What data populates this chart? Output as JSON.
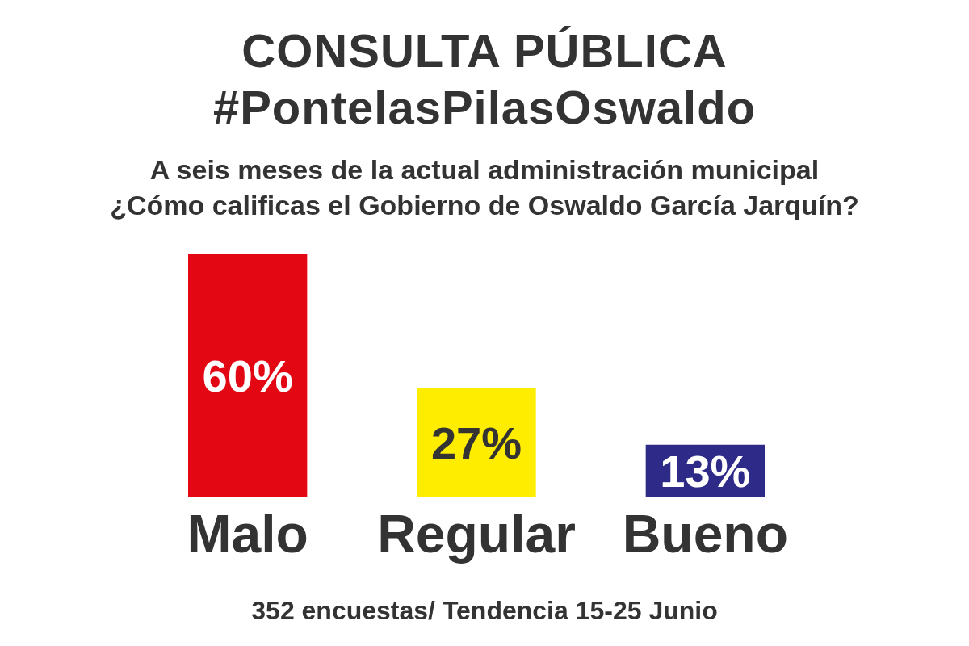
{
  "chart_data": {
    "type": "bar",
    "title": "CONSULTA PÚBLICA\n#PontelasPilasOswaldo",
    "subtitle": "A seis meses de la actual administración municipal\n¿Cómo calificas el Gobierno de Oswaldo García Jarquín?",
    "categories": [
      "Malo",
      "Regular",
      "Bueno"
    ],
    "values": [
      60,
      27,
      13
    ],
    "colors": [
      "#e30613",
      "#ffed00",
      "#2e2a87"
    ],
    "value_labels": [
      "60%",
      "27%",
      "13%"
    ],
    "tick_labels": "x",
    "grid": false,
    "legend": false,
    "annotations": [
      "352 encuestas/ Tendencia 15-25 Junio"
    ]
  }
}
